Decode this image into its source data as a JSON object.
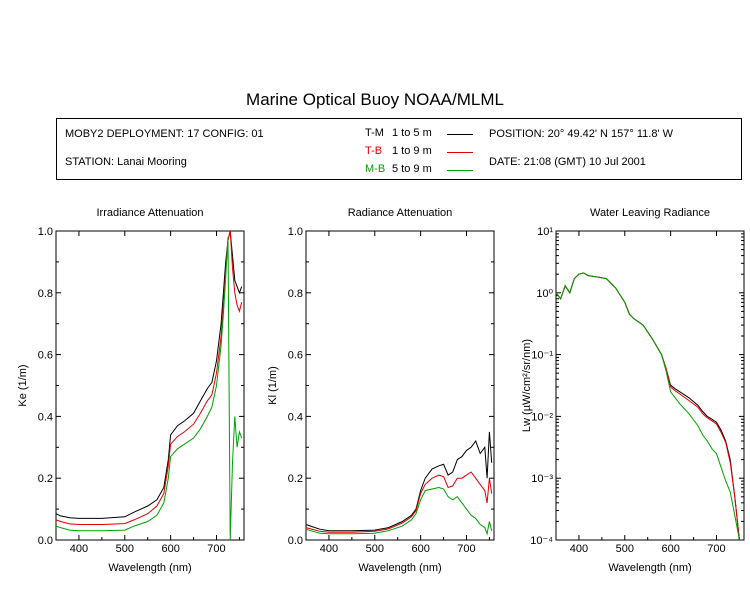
{
  "title": "Marine Optical Buoy NOAA/MLML",
  "info": {
    "deployment": "MOBY2 DEPLOYMENT: 17 CONFIG: 01",
    "station": "STATION: Lanai Mooring",
    "position": "POSITION: 20° 49.42' N   157° 11.8' W",
    "date": "DATE: 21:08 (GMT) 10 Jul 2001",
    "legend": [
      {
        "code": "T-M",
        "range": "1 to 5  m",
        "color": "#000000"
      },
      {
        "code": "T-B",
        "range": "1 to 9  m",
        "color": "#e00000"
      },
      {
        "code": "M-B",
        "range": "5 to 9  m",
        "color": "#00a000"
      }
    ]
  },
  "chart_data": [
    {
      "type": "line",
      "title": "Irradiance Attenuation",
      "xlabel": "Wavelength (nm)",
      "ylabel": "Ke  (1/m)",
      "xlim": [
        350,
        760
      ],
      "ylim": [
        0,
        1.0
      ],
      "xticks": [
        400,
        500,
        600,
        700
      ],
      "yticks": [
        0.0,
        0.2,
        0.4,
        0.6,
        0.8,
        1.0
      ],
      "ytick_labels": [
        "0.0",
        "0.2",
        "0.4",
        "0.6",
        "0.8",
        "1.0"
      ],
      "series": [
        {
          "name": "T-M",
          "color": "#000000",
          "x": [
            350,
            360,
            380,
            400,
            450,
            500,
            520,
            550,
            570,
            585,
            595,
            600,
            615,
            630,
            650,
            665,
            680,
            690,
            700,
            710,
            715,
            720,
            725,
            730,
            735,
            740,
            745,
            750,
            755
          ],
          "y": [
            0.085,
            0.078,
            0.072,
            0.07,
            0.07,
            0.075,
            0.09,
            0.11,
            0.13,
            0.17,
            0.26,
            0.34,
            0.37,
            0.385,
            0.41,
            0.45,
            0.49,
            0.51,
            0.58,
            0.7,
            0.8,
            0.9,
            0.97,
            1.0,
            0.92,
            0.84,
            0.82,
            0.8,
            0.82
          ]
        },
        {
          "name": "T-B",
          "color": "#e00000",
          "x": [
            350,
            360,
            380,
            400,
            450,
            500,
            520,
            550,
            570,
            585,
            595,
            600,
            615,
            630,
            650,
            665,
            680,
            690,
            700,
            710,
            715,
            720,
            725,
            730,
            735,
            740,
            745,
            750,
            755
          ],
          "y": [
            0.065,
            0.06,
            0.052,
            0.05,
            0.05,
            0.053,
            0.065,
            0.085,
            0.11,
            0.15,
            0.24,
            0.31,
            0.335,
            0.35,
            0.375,
            0.41,
            0.45,
            0.47,
            0.54,
            0.66,
            0.76,
            0.87,
            0.97,
            1.0,
            0.88,
            0.8,
            0.76,
            0.74,
            0.77
          ]
        },
        {
          "name": "M-B",
          "color": "#00a000",
          "x": [
            350,
            360,
            380,
            400,
            450,
            500,
            520,
            550,
            570,
            585,
            595,
            600,
            615,
            630,
            650,
            665,
            680,
            690,
            700,
            710,
            715,
            720,
            725,
            730,
            735,
            740,
            745,
            750,
            755
          ],
          "y": [
            0.045,
            0.04,
            0.032,
            0.03,
            0.03,
            0.032,
            0.045,
            0.06,
            0.08,
            0.12,
            0.2,
            0.27,
            0.295,
            0.31,
            0.33,
            0.36,
            0.4,
            0.43,
            0.5,
            0.63,
            0.73,
            0.85,
            0.98,
            0.0,
            0.25,
            0.4,
            0.3,
            0.35,
            0.33
          ]
        }
      ]
    },
    {
      "type": "line",
      "title": "Radiance Attenuation",
      "xlabel": "Wavelength (nm)",
      "ylabel": "Kl  (1/m)",
      "xlim": [
        350,
        760
      ],
      "ylim": [
        0,
        1.0
      ],
      "xticks": [
        400,
        500,
        600,
        700
      ],
      "yticks": [
        0.0,
        0.2,
        0.4,
        0.6,
        0.8,
        1.0
      ],
      "ytick_labels": [
        "0.0",
        "0.2",
        "0.4",
        "0.6",
        "0.8",
        "1.0"
      ],
      "series": [
        {
          "name": "T-M",
          "color": "#000000",
          "x": [
            350,
            360,
            380,
            400,
            450,
            500,
            530,
            560,
            580,
            590,
            600,
            610,
            625,
            640,
            650,
            660,
            670,
            680,
            690,
            700,
            710,
            720,
            730,
            740,
            745,
            750,
            755
          ],
          "y": [
            0.05,
            0.045,
            0.035,
            0.03,
            0.03,
            0.032,
            0.04,
            0.06,
            0.08,
            0.1,
            0.16,
            0.2,
            0.23,
            0.24,
            0.245,
            0.21,
            0.22,
            0.26,
            0.27,
            0.29,
            0.3,
            0.32,
            0.28,
            0.3,
            0.2,
            0.35,
            0.25
          ]
        },
        {
          "name": "T-B",
          "color": "#e00000",
          "x": [
            350,
            360,
            380,
            400,
            450,
            500,
            530,
            560,
            580,
            590,
            600,
            610,
            625,
            640,
            650,
            660,
            670,
            680,
            690,
            700,
            710,
            720,
            730,
            740,
            745,
            750,
            755
          ],
          "y": [
            0.04,
            0.036,
            0.028,
            0.025,
            0.025,
            0.028,
            0.036,
            0.055,
            0.075,
            0.095,
            0.15,
            0.18,
            0.2,
            0.21,
            0.205,
            0.17,
            0.175,
            0.2,
            0.2,
            0.21,
            0.22,
            0.2,
            0.18,
            0.16,
            0.12,
            0.2,
            0.15
          ]
        },
        {
          "name": "M-B",
          "color": "#00a000",
          "x": [
            350,
            360,
            380,
            400,
            450,
            500,
            530,
            560,
            580,
            590,
            600,
            610,
            625,
            640,
            650,
            660,
            670,
            680,
            690,
            700,
            710,
            720,
            730,
            740,
            745,
            750,
            755
          ],
          "y": [
            0.035,
            0.03,
            0.022,
            0.02,
            0.02,
            0.022,
            0.03,
            0.045,
            0.065,
            0.085,
            0.13,
            0.16,
            0.165,
            0.17,
            0.165,
            0.14,
            0.13,
            0.14,
            0.12,
            0.1,
            0.08,
            0.07,
            0.05,
            0.04,
            0.02,
            0.06,
            0.03
          ]
        }
      ]
    },
    {
      "type": "line",
      "title": "Water Leaving Radiance",
      "xlabel": "Wavelength (nm)",
      "ylabel": "Lw  (µW/cm²/sr/nm)",
      "xlim": [
        350,
        760
      ],
      "ylim": [
        0.0001,
        10
      ],
      "yscale": "log",
      "xticks": [
        400,
        500,
        600,
        700
      ],
      "yticks": [
        0.0001,
        0.001,
        0.01,
        0.1,
        1,
        10
      ],
      "ytick_labels": [
        "10⁻⁴",
        "10⁻³",
        "10⁻²",
        "10⁻¹",
        "10⁰",
        "10¹"
      ],
      "series": [
        {
          "name": "T-M",
          "color": "#000000",
          "x": [
            350,
            360,
            370,
            380,
            390,
            400,
            410,
            420,
            440,
            460,
            480,
            500,
            510,
            520,
            540,
            560,
            580,
            590,
            600,
            610,
            620,
            640,
            660,
            670,
            680,
            690,
            700,
            710,
            720,
            730,
            740,
            750
          ],
          "y": [
            1.0,
            0.8,
            1.3,
            1.0,
            1.7,
            2.0,
            2.1,
            1.9,
            1.8,
            1.7,
            1.2,
            0.7,
            0.45,
            0.38,
            0.3,
            0.18,
            0.1,
            0.06,
            0.032,
            0.028,
            0.025,
            0.02,
            0.015,
            0.012,
            0.01,
            0.009,
            0.008,
            0.006,
            0.004,
            0.002,
            0.0005,
            0.0001
          ]
        },
        {
          "name": "T-B",
          "color": "#e00000",
          "x": [
            350,
            360,
            370,
            380,
            390,
            400,
            410,
            420,
            440,
            460,
            480,
            500,
            510,
            520,
            540,
            560,
            580,
            590,
            600,
            610,
            620,
            640,
            660,
            670,
            680,
            690,
            700,
            710,
            720,
            730,
            740,
            750
          ],
          "y": [
            1.0,
            0.8,
            1.3,
            1.0,
            1.7,
            2.0,
            2.1,
            1.9,
            1.8,
            1.7,
            1.2,
            0.7,
            0.45,
            0.38,
            0.3,
            0.18,
            0.1,
            0.06,
            0.03,
            0.026,
            0.023,
            0.018,
            0.014,
            0.011,
            0.0095,
            0.0085,
            0.0075,
            0.0055,
            0.0038,
            0.0018,
            0.0005,
            0.0001
          ]
        },
        {
          "name": "M-B",
          "color": "#00a000",
          "x": [
            350,
            360,
            370,
            380,
            390,
            400,
            410,
            420,
            440,
            460,
            480,
            500,
            510,
            520,
            540,
            560,
            580,
            590,
            600,
            610,
            620,
            640,
            660,
            670,
            680,
            690,
            700,
            710,
            720,
            730,
            740,
            750
          ],
          "y": [
            1.0,
            0.8,
            1.3,
            1.0,
            1.7,
            2.0,
            2.1,
            1.9,
            1.8,
            1.7,
            1.2,
            0.7,
            0.45,
            0.38,
            0.3,
            0.18,
            0.1,
            0.055,
            0.025,
            0.02,
            0.016,
            0.011,
            0.007,
            0.005,
            0.004,
            0.003,
            0.0025,
            0.0015,
            0.0009,
            0.0006,
            0.00025,
            0.0001
          ]
        }
      ]
    }
  ]
}
